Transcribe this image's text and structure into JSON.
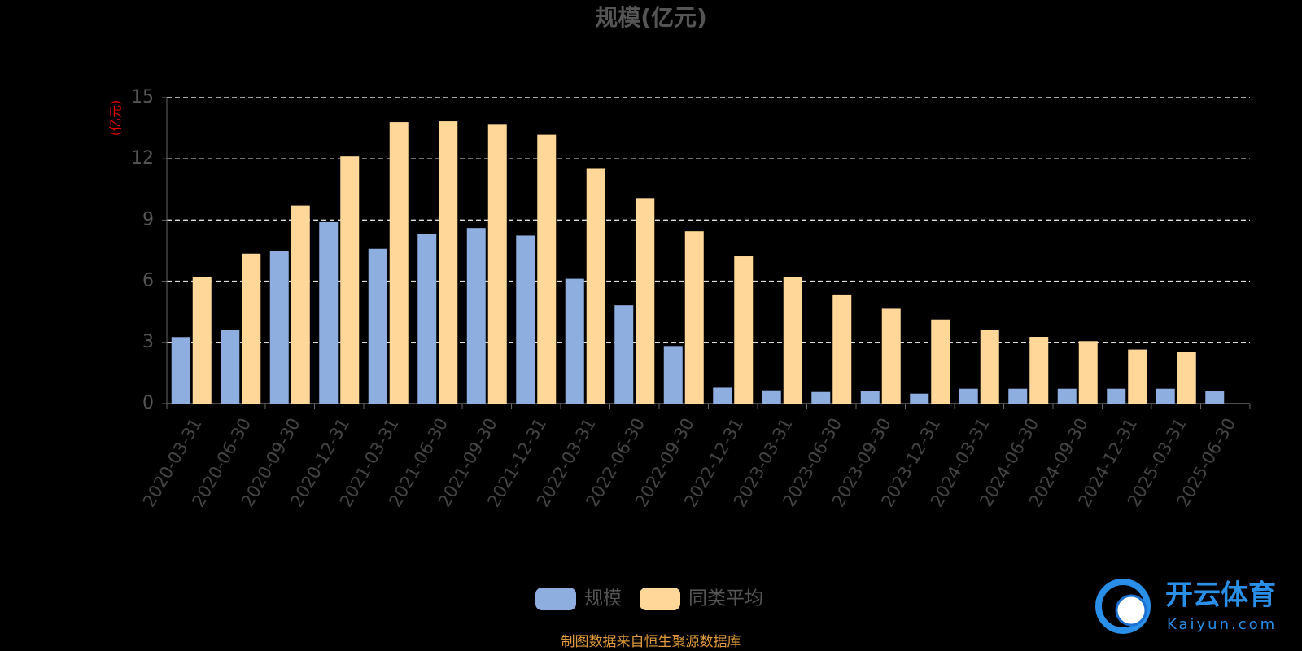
{
  "chart_data": {
    "type": "bar",
    "title": "规模(亿元)",
    "y_label": "(亿元)",
    "categories": [
      "2020-03-31",
      "2020-06-30",
      "2020-09-30",
      "2020-12-31",
      "2021-03-31",
      "2021-06-30",
      "2021-09-30",
      "2021-12-31",
      "2022-03-31",
      "2022-06-30",
      "2022-09-30",
      "2022-12-31",
      "2023-03-31",
      "2023-06-30",
      "2023-09-30",
      "2023-12-31",
      "2024-03-31",
      "2024-06-30",
      "2024-09-30",
      "2024-12-31",
      "2025-03-31",
      "2025-06-30"
    ],
    "series": [
      {
        "name": "规模",
        "color": "#8eaee0",
        "values": [
          3.26,
          3.63,
          7.47,
          8.9,
          7.59,
          8.33,
          8.61,
          8.24,
          6.12,
          4.82,
          2.82,
          0.78,
          0.65,
          0.57,
          0.61,
          0.49,
          0.73,
          0.73,
          0.73,
          0.73,
          0.73,
          0.61
        ]
      },
      {
        "name": "同类平均",
        "color": "#ffd899",
        "values": [
          6.2,
          7.35,
          9.71,
          12.12,
          13.8,
          13.84,
          13.71,
          13.18,
          11.51,
          10.08,
          8.45,
          7.22,
          6.2,
          5.35,
          4.65,
          4.12,
          3.59,
          3.27,
          3.06,
          2.65,
          2.53,
          null
        ]
      }
    ],
    "ylim": [
      0,
      15
    ],
    "yticks": [
      0,
      3,
      6,
      9,
      12,
      15
    ],
    "grid": true,
    "legend": "bottom",
    "source": "制图数据来自恒生聚源数据库"
  },
  "watermark": {
    "brand": "开云体育",
    "site": "Kaiyun.com"
  }
}
